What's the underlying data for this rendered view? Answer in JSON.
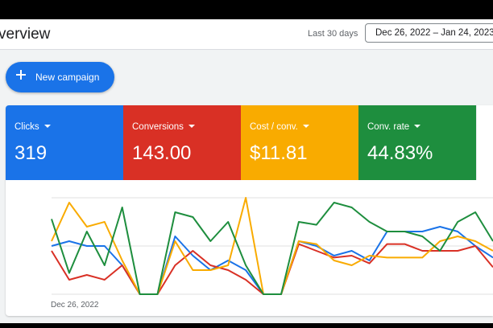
{
  "header": {
    "title": "verview",
    "range_label": "Last 30 days",
    "date_range": "Dec 26, 2022 – Jan 24, 2023"
  },
  "actions": {
    "new_campaign": "New campaign"
  },
  "metrics": [
    {
      "label": "Clicks",
      "value": "319",
      "color": "#1a73e8"
    },
    {
      "label": "Conversions",
      "value": "143.00",
      "color": "#d93025"
    },
    {
      "label": "Cost / conv.",
      "value": "$11.81",
      "color": "#f9ab00"
    },
    {
      "label": "Conv. rate",
      "value": "44.83%",
      "color": "#1e8e3e"
    }
  ],
  "chart_data": {
    "type": "line",
    "x_start_label": "Dec 26, 2022",
    "grid": true,
    "series": [
      {
        "color": "#1a73e8",
        "values": [
          50,
          55,
          50,
          50,
          30,
          0,
          0,
          60,
          40,
          25,
          35,
          25,
          0,
          0,
          55,
          50,
          40,
          45,
          35,
          65,
          65,
          65,
          70,
          65,
          50,
          38
        ]
      },
      {
        "color": "#d93025",
        "values": [
          45,
          15,
          20,
          15,
          30,
          0,
          0,
          30,
          45,
          30,
          25,
          15,
          0,
          0,
          52,
          45,
          38,
          40,
          32,
          52,
          52,
          45,
          45,
          45,
          50,
          28
        ]
      },
      {
        "color": "#f9ab00",
        "values": [
          55,
          95,
          70,
          75,
          35,
          0,
          0,
          55,
          25,
          25,
          30,
          100,
          0,
          0,
          55,
          52,
          35,
          30,
          40,
          38,
          38,
          38,
          55,
          60,
          55,
          45
        ]
      },
      {
        "color": "#1e8e3e",
        "values": [
          78,
          22,
          65,
          30,
          90,
          0,
          0,
          85,
          80,
          55,
          75,
          30,
          0,
          0,
          75,
          72,
          95,
          90,
          75,
          65,
          65,
          60,
          45,
          75,
          85,
          55
        ]
      }
    ]
  }
}
